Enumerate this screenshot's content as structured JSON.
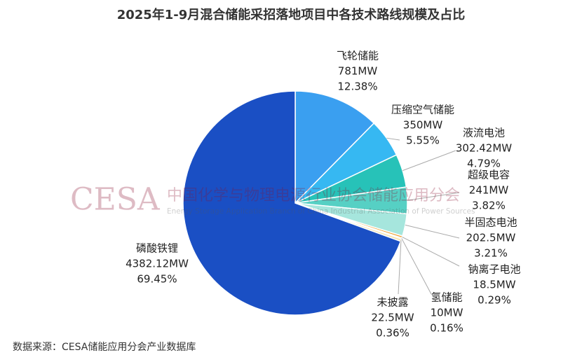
{
  "chart_data": {
    "type": "pie",
    "title": "2025年1-9月混合储能采招落地项目中各技术路线规模及占比",
    "categories": [
      "飞轮储能",
      "压缩空气储能",
      "液流电池",
      "超级电容",
      "半固态电池",
      "钠离子电池",
      "氢储能",
      "未披露",
      "磷酸铁锂"
    ],
    "values": [
      781,
      350,
      302.42,
      241,
      202.5,
      18.5,
      10,
      22.5,
      4382.12
    ],
    "value_labels": [
      "781MW",
      "350MW",
      "302.42MW",
      "241MW",
      "202.5MW",
      "18.5MW",
      "10MW",
      "22.5MW",
      "4382.12MW"
    ],
    "percents": [
      12.38,
      5.55,
      4.79,
      3.82,
      3.21,
      0.29,
      0.16,
      0.36,
      69.45
    ],
    "percent_labels": [
      "12.38%",
      "5.55%",
      "4.79%",
      "3.82%",
      "3.21%",
      "0.29%",
      "0.16%",
      "0.36%",
      "69.45%"
    ],
    "colors": [
      "#3a9ff0",
      "#36b8f2",
      "#27c2b8",
      "#56d0c4",
      "#a6e6dd",
      "#f0a030",
      "#8a5a2a",
      "#f3e3b0",
      "#1a4fc4"
    ],
    "watermark": {
      "logo": "CESA",
      "cn": "中国化学与物理电源行业协会储能应用分会",
      "en": "Energy Storage Application Branch of China Industrial Association of Power Sources"
    },
    "source": "数据来源：CESA储能应用分会产业数据库"
  }
}
